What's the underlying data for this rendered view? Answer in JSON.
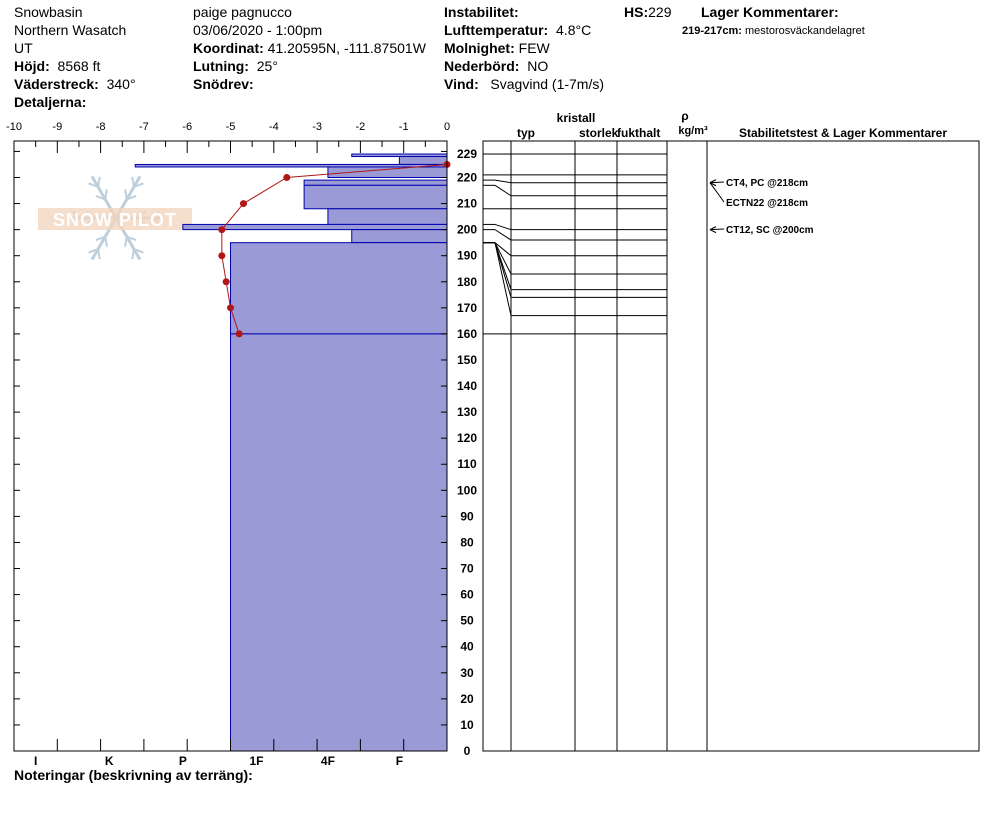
{
  "header": {
    "location": "Snowbasin",
    "range": "Northern Wasatch",
    "state": "UT",
    "elevation_label": "Höjd:",
    "elevation": "8568 ft",
    "aspect_label": "Väderstreck:",
    "aspect": "340°",
    "details_label": "Detaljerna:",
    "observer": "paige pagnucco",
    "datetime": "03/06/2020 - 1:00pm",
    "coord_label": "Koordinat:",
    "coord": "41.20595N, -111.87501W",
    "slope_label": "Lutning:",
    "slope": "25°",
    "drift_label": "Snödrev:",
    "instability_label": "Instabilitet:",
    "airtemp_label": "Lufttemperatur:",
    "airtemp": "4.8°C",
    "cloud_label": "Molnighet:",
    "cloud": "FEW",
    "precip_label": "Nederbörd:",
    "precip": "NO",
    "wind_label": "Vind:",
    "wind": "Svagvind (1-7m/s)",
    "hs_label": "HS:",
    "hs": "229",
    "layer_comments_label": "Lager Kommentarer:",
    "layer_comment_range": "219-217cm:",
    "layer_comment_text": "mestorosväckandelagret"
  },
  "logo": {
    "text": "SNOW PILOT"
  },
  "footer": {
    "notes_label": "Noteringar (beskrivning av terräng):"
  },
  "columns": {
    "crystal": "kristall",
    "type": "typ",
    "size": "storlek",
    "moisture": "fukthalt",
    "rho": "ρ",
    "density_unit": "kg/m³",
    "stability": "Stabilitetstest & Lager Kommentarer"
  },
  "colors": {
    "hardness_fill": "#9a9ad6",
    "hardness_edge": "#0000b0",
    "temp_line": "#b01818",
    "temp_point": "#b01818"
  },
  "chart_data": {
    "type": "bar",
    "temp_axis": {
      "min": -10,
      "max": 0,
      "ticks": [
        "-10",
        "-9",
        "-8",
        "-7",
        "-6",
        "-5",
        "-4",
        "-3",
        "-2",
        "-1",
        "0"
      ]
    },
    "height_axis": {
      "min": 0,
      "max": 234,
      "ticks": [
        "229",
        "220",
        "210",
        "200",
        "190",
        "180",
        "170",
        "160",
        "150",
        "140",
        "130",
        "120",
        "110",
        "100",
        "90",
        "80",
        "70",
        "60",
        "50",
        "40",
        "30",
        "20",
        "10",
        "0"
      ]
    },
    "hardness_labels": [
      "I",
      "K",
      "P",
      "1F",
      "4F",
      "F"
    ],
    "hardness_tick_temps": [
      -9.5,
      -7.8,
      -6.1,
      -4.4,
      -2.75,
      -1.1
    ],
    "hardness_layers": [
      {
        "top": 229,
        "bottom": 225,
        "hardness_temp": -1.1,
        "outline_temp": -2.2
      },
      {
        "top": 225,
        "bottom": 220,
        "hardness_temp": -2.75,
        "outline_temp": -7.2
      },
      {
        "top": 219,
        "bottom": 217,
        "hardness_temp": -3.3
      },
      {
        "top": 217,
        "bottom": 208,
        "hardness_temp": -3.3
      },
      {
        "top": 208,
        "bottom": 202,
        "hardness_temp": -2.75
      },
      {
        "top": 202,
        "bottom": 200,
        "hardness_temp": -6.1
      },
      {
        "top": 200,
        "bottom": 195,
        "hardness_temp": -2.2
      },
      {
        "top": 195,
        "bottom": 160,
        "hardness_temp": -5.0
      },
      {
        "top": 160,
        "bottom": 0,
        "hardness_temp": -5.0
      }
    ],
    "temperature_profile": [
      {
        "height": 225,
        "temp": 0.0
      },
      {
        "height": 220,
        "temp": -3.7
      },
      {
        "height": 210,
        "temp": -4.7
      },
      {
        "height": 200,
        "temp": -5.2
      },
      {
        "height": 190,
        "temp": -5.2
      },
      {
        "height": 180,
        "temp": -5.1
      },
      {
        "height": 170,
        "temp": -5.0
      },
      {
        "height": 160,
        "temp": -4.8
      }
    ],
    "layer_boundaries_right": [
      229,
      221,
      218,
      213,
      208,
      200,
      196,
      190,
      183,
      177,
      174,
      167,
      160
    ],
    "stability_tests": [
      {
        "label": "CT4, PC @218cm",
        "height": 218
      },
      {
        "label": "ECTN22 @218cm",
        "height": 218
      },
      {
        "label": "CT12, SC @200cm",
        "height": 200
      }
    ]
  }
}
